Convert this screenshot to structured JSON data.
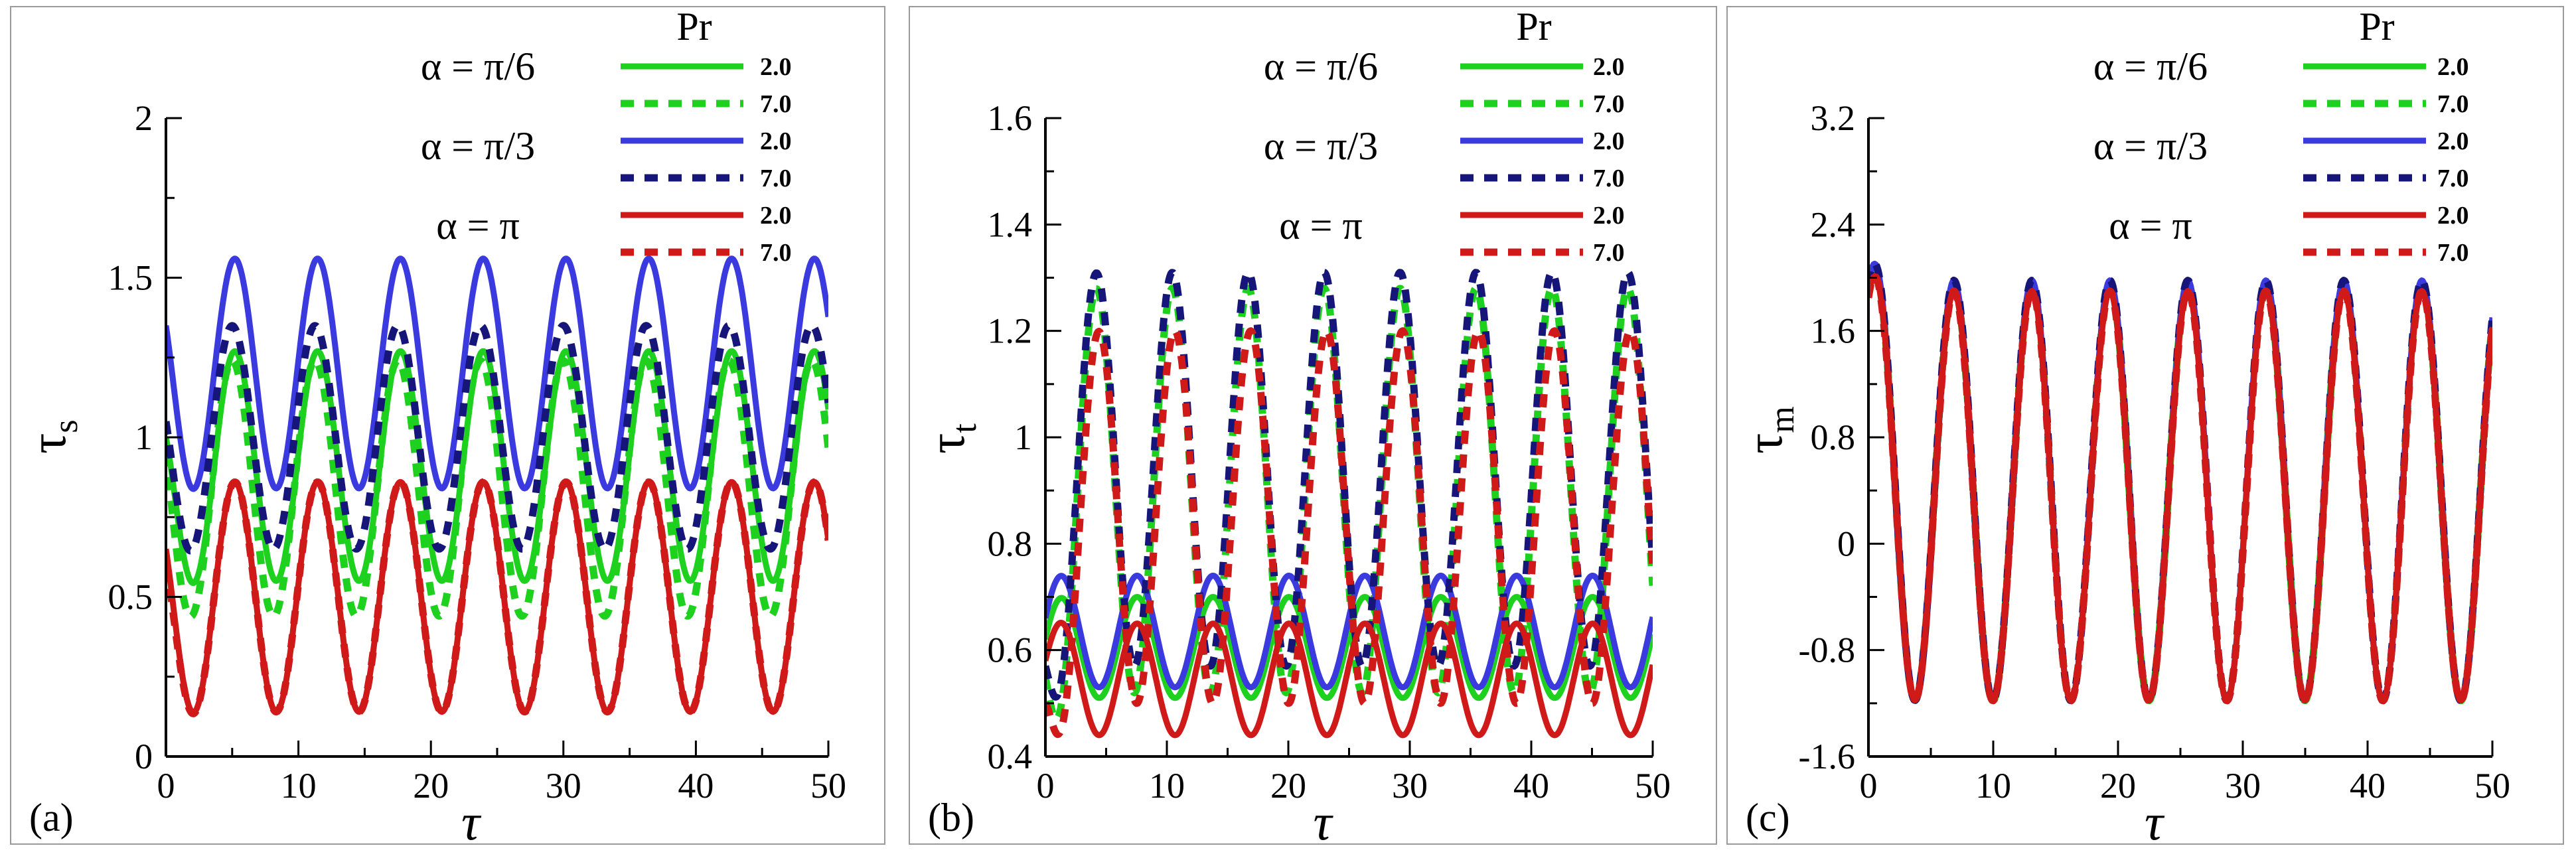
{
  "chart_data": [
    {
      "type": "line",
      "panel_label": "(a)",
      "xlabel": "τ",
      "ylabel": {
        "main": "τ",
        "sub": "s"
      },
      "xlim": [
        0,
        50
      ],
      "ylim": [
        0,
        2
      ],
      "xticks": [
        0,
        10,
        20,
        30,
        40,
        50
      ],
      "xtick_labels": [
        "0",
        "10",
        "20",
        "30",
        "40",
        "50"
      ],
      "yticks": [
        0,
        0.5,
        1,
        1.5,
        2
      ],
      "ytick_labels": [
        "0",
        "0.5",
        "1",
        "1.5",
        "2"
      ],
      "alpha_labels": [
        "α = π/6",
        "α = π/3",
        "α = π"
      ],
      "legend_title": "Pr",
      "legend": [
        {
          "value": "2.0",
          "color": "#1fd11f",
          "style": "solid"
        },
        {
          "value": "7.0",
          "color": "#1fd11f",
          "style": "dashed"
        },
        {
          "value": "2.0",
          "color": "#3a3adf",
          "style": "solid"
        },
        {
          "value": "7.0",
          "color": "#15157a",
          "style": "dashed"
        },
        {
          "value": "2.0",
          "color": "#d01a1a",
          "style": "solid"
        },
        {
          "value": "7.0",
          "color": "#d01a1a",
          "style": "dashed"
        }
      ],
      "series": [
        {
          "name": "α = π/6, Pr = 2.0",
          "color": "#1fd11f",
          "style": "solid",
          "mean": 0.91,
          "amp": 0.36,
          "period": 6.25,
          "peak_x": 5.2,
          "start_y": 1.0
        },
        {
          "name": "α = π/6, Pr = 7.0",
          "color": "#1fd11f",
          "style": "dashed",
          "mean": 0.84,
          "amp": 0.4,
          "period": 6.25,
          "peak_x": 5.0,
          "start_y": 0.95
        },
        {
          "name": "α = π/3, Pr = 2.0",
          "color": "#3a3adf",
          "style": "solid",
          "mean": 1.2,
          "amp": 0.36,
          "period": 6.25,
          "peak_x": 5.2,
          "start_y": 1.35
        },
        {
          "name": "α = π/3, Pr = 7.0",
          "color": "#15157a",
          "style": "dashed",
          "mean": 1.0,
          "amp": 0.35,
          "period": 6.25,
          "peak_x": 5.0,
          "start_y": 1.05
        },
        {
          "name": "α = π, Pr = 2.0",
          "color": "#d01a1a",
          "style": "solid",
          "mean": 0.5,
          "amp": 0.36,
          "period": 6.25,
          "peak_x": 5.2,
          "start_y": 0.65
        },
        {
          "name": "α = π, Pr = 7.0",
          "color": "#d01a1a",
          "style": "dashed",
          "mean": 0.5,
          "amp": 0.36,
          "period": 6.25,
          "peak_x": 5.2,
          "start_y": 0.6
        }
      ]
    },
    {
      "type": "line",
      "panel_label": "(b)",
      "xlabel": "τ",
      "ylabel": {
        "main": "τ",
        "sub": "t"
      },
      "xlim": [
        0,
        50
      ],
      "ylim": [
        0.4,
        1.6
      ],
      "xticks": [
        0,
        10,
        20,
        30,
        40,
        50
      ],
      "xtick_labels": [
        "0",
        "10",
        "20",
        "30",
        "40",
        "50"
      ],
      "yticks": [
        0.4,
        0.6,
        0.8,
        1.0,
        1.2,
        1.4,
        1.6
      ],
      "ytick_labels": [
        "0.4",
        "0.6",
        "0.8",
        "1",
        "1.2",
        "1.4",
        "1.6"
      ],
      "alpha_labels": [
        "α = π/6",
        "α = π/3",
        "α = π"
      ],
      "legend_title": "Pr",
      "legend": [
        {
          "value": "2.0",
          "color": "#1fd11f",
          "style": "solid"
        },
        {
          "value": "7.0",
          "color": "#1fd11f",
          "style": "dashed"
        },
        {
          "value": "2.0",
          "color": "#3a3adf",
          "style": "solid"
        },
        {
          "value": "7.0",
          "color": "#15157a",
          "style": "dashed"
        },
        {
          "value": "2.0",
          "color": "#d01a1a",
          "style": "solid"
        },
        {
          "value": "7.0",
          "color": "#d01a1a",
          "style": "dashed"
        }
      ],
      "series": [
        {
          "name": "α = π/6, Pr = 2.0",
          "color": "#1fd11f",
          "style": "solid",
          "mean": 0.605,
          "amp": 0.095,
          "period": 6.25,
          "peak_x": 1.3,
          "start_y": 0.62
        },
        {
          "name": "α = π/6, Pr = 7.0",
          "color": "#1fd11f",
          "style": "dashed",
          "mean": 0.9,
          "amp": 0.38,
          "period": 6.25,
          "peak_x": 4.2,
          "start_y": 0.55
        },
        {
          "name": "α = π/3, Pr = 2.0",
          "color": "#3a3adf",
          "style": "solid",
          "mean": 0.635,
          "amp": 0.105,
          "period": 6.25,
          "peak_x": 1.3,
          "start_y": 0.66
        },
        {
          "name": "α = π/3, Pr = 7.0",
          "color": "#15157a",
          "style": "dashed",
          "mean": 0.94,
          "amp": 0.37,
          "period": 6.25,
          "peak_x": 4.2,
          "start_y": 0.57
        },
        {
          "name": "α = π, Pr = 2.0",
          "color": "#d01a1a",
          "style": "solid",
          "mean": 0.545,
          "amp": 0.105,
          "period": 6.25,
          "peak_x": 1.3,
          "start_y": 0.58
        },
        {
          "name": "α = π, Pr = 7.0",
          "color": "#d01a1a",
          "style": "dashed",
          "mean": 0.85,
          "amp": 0.35,
          "period": 6.25,
          "peak_x": 4.4,
          "start_y": 0.5
        }
      ]
    },
    {
      "type": "line",
      "panel_label": "(c)",
      "xlabel": "τ",
      "ylabel": {
        "main": "τ",
        "sub": "m"
      },
      "xlim": [
        0,
        50
      ],
      "ylim": [
        -1.6,
        3.2
      ],
      "xticks": [
        0,
        10,
        20,
        30,
        40,
        50
      ],
      "xtick_labels": [
        "0",
        "10",
        "20",
        "30",
        "40",
        "50"
      ],
      "yticks": [
        -1.6,
        -0.8,
        0,
        0.8,
        1.6,
        2.4,
        3.2
      ],
      "ytick_labels": [
        "-1.6",
        "-0.8",
        "0",
        "0.8",
        "1.6",
        "2.4",
        "3.2"
      ],
      "alpha_labels": [
        "α = π/6",
        "α = π/3",
        "α = π"
      ],
      "legend_title": "Pr",
      "legend": [
        {
          "value": "2.0",
          "color": "#1fd11f",
          "style": "solid"
        },
        {
          "value": "7.0",
          "color": "#1fd11f",
          "style": "dashed"
        },
        {
          "value": "2.0",
          "color": "#3a3adf",
          "style": "solid"
        },
        {
          "value": "7.0",
          "color": "#15157a",
          "style": "dashed"
        },
        {
          "value": "2.0",
          "color": "#d01a1a",
          "style": "solid"
        },
        {
          "value": "7.0",
          "color": "#d01a1a",
          "style": "dashed"
        }
      ],
      "series": [
        {
          "name": "α = π/6, Pr = 2.0",
          "color": "#1fd11f",
          "style": "solid",
          "mean": 0.38,
          "amp": 1.56,
          "period": 6.25,
          "peak_x": 0.6,
          "start_y": 1.9
        },
        {
          "name": "α = π/6, Pr = 7.0",
          "color": "#1fd11f",
          "style": "dashed",
          "mean": 0.38,
          "amp": 1.56,
          "period": 6.25,
          "peak_x": 0.6,
          "start_y": 1.9
        },
        {
          "name": "α = π/3, Pr = 2.0",
          "color": "#3a3adf",
          "style": "solid",
          "mean": 0.4,
          "amp": 1.58,
          "period": 6.25,
          "peak_x": 0.6,
          "start_y": 1.95
        },
        {
          "name": "α = π/3, Pr = 7.0",
          "color": "#15157a",
          "style": "dashed",
          "mean": 0.4,
          "amp": 1.58,
          "period": 6.25,
          "peak_x": 0.6,
          "start_y": 1.95
        },
        {
          "name": "α = π, Pr = 2.0",
          "color": "#d01a1a",
          "style": "solid",
          "mean": 0.36,
          "amp": 1.54,
          "period": 6.25,
          "peak_x": 0.6,
          "start_y": 1.85
        },
        {
          "name": "α = π, Pr = 7.0",
          "color": "#d01a1a",
          "style": "dashed",
          "mean": 0.36,
          "amp": 1.54,
          "period": 6.25,
          "peak_x": 0.6,
          "start_y": 1.85
        }
      ]
    }
  ]
}
